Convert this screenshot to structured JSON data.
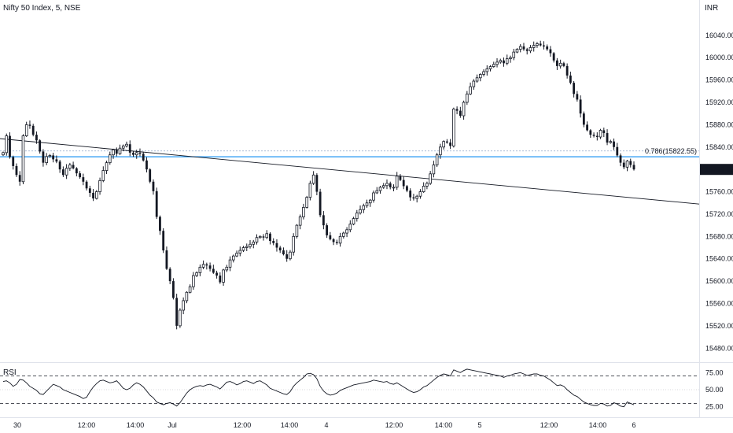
{
  "header": {
    "symbol": "Nifty 50 Index, 5, NSE"
  },
  "currency": "INR",
  "chart_data": {
    "type": "candlestick",
    "symbol": "Nifty 50 Index",
    "interval": "5",
    "exchange": "NSE",
    "currency": "INR",
    "price_axis": {
      "range": [
        15455,
        16075
      ],
      "ticks": [
        "15480.00",
        "15520.00",
        "15560.00",
        "15600.00",
        "15640.00",
        "15680.00",
        "15720.00",
        "15760.00",
        "15800.00",
        "15840.00",
        "15880.00",
        "15920.00",
        "15960.00",
        "16000.00",
        "16040.00"
      ]
    },
    "last_price": "15799.95",
    "last_price_value": 15799.95,
    "fib_level": {
      "label": "0.786(15822.55)",
      "value": 15822.55,
      "color": "#2196f3"
    },
    "dotted_level": {
      "value": 15833,
      "color": "#90a4c8"
    },
    "trendline": {
      "from": {
        "time": "30",
        "price": 15855
      },
      "to": {
        "time": "6",
        "price": 15738
      },
      "color": "#131722"
    },
    "time_axis": [
      "30",
      "12:00",
      "14:00",
      "Jul",
      "12:00",
      "14:00",
      "4",
      "12:00",
      "14:00",
      "5",
      "12:00",
      "14:00",
      "6"
    ],
    "closes": [
      15830,
      15860,
      15822,
      15806,
      15790,
      15778,
      15860,
      15880,
      15878,
      15862,
      15852,
      15832,
      15812,
      15823,
      15825,
      15818,
      15814,
      15800,
      15790,
      15802,
      15808,
      15802,
      15793,
      15786,
      15778,
      15766,
      15758,
      15748,
      15760,
      15780,
      15798,
      15812,
      15826,
      15835,
      15828,
      15838,
      15842,
      15845,
      15830,
      15826,
      15830,
      15828,
      15816,
      15800,
      15778,
      15761,
      15715,
      15690,
      15655,
      15622,
      15600,
      15570,
      15520,
      15548,
      15565,
      15580,
      15590,
      15610,
      15615,
      15625,
      15630,
      15628,
      15622,
      15615,
      15610,
      15598,
      15620,
      15625,
      15638,
      15645,
      15650,
      15655,
      15660,
      15662,
      15666,
      15670,
      15678,
      15680,
      15678,
      15685,
      15672,
      15668,
      15660,
      15655,
      15648,
      15640,
      15652,
      15680,
      15700,
      15715,
      15732,
      15750,
      15775,
      15790,
      15760,
      15718,
      15700,
      15682,
      15675,
      15670,
      15668,
      15680,
      15686,
      15692,
      15702,
      15712,
      15722,
      15728,
      15735,
      15740,
      15745,
      15758,
      15762,
      15768,
      15771,
      15775,
      15768,
      15768,
      15788,
      15781,
      15770,
      15762,
      15750,
      15748,
      15752,
      15760,
      15770,
      15775,
      15792,
      15808,
      15826,
      15840,
      15850,
      15848,
      15842,
      15908,
      15905,
      15896,
      15920,
      15935,
      15948,
      15958,
      15964,
      15970,
      15975,
      15980,
      15984,
      15988,
      15992,
      15995,
      15990,
      15998,
      16000,
      16010,
      16015,
      16020,
      16015,
      16012,
      16018,
      16022,
      16025,
      16022,
      16020,
      16015,
      16008,
      15995,
      15985,
      15990,
      15985,
      15968,
      15955,
      15935,
      15925,
      15900,
      15880,
      15870,
      15862,
      15860,
      15858,
      15870,
      15865,
      15848,
      15850,
      15840,
      15825,
      15812,
      15804,
      15815,
      15808,
      15800
    ]
  },
  "rsi": {
    "label": "RSI",
    "ticks": [
      "75.00",
      "50.00",
      "25.00"
    ],
    "bands": {
      "upper": 70,
      "middle": 50,
      "lower": 30
    },
    "values": [
      62,
      63,
      60,
      55,
      58,
      65,
      64,
      60,
      55,
      52,
      49,
      44,
      43,
      48,
      53,
      58,
      56,
      54,
      50,
      48,
      46,
      44,
      42,
      40,
      37,
      39,
      47,
      54,
      59,
      63,
      64,
      62,
      60,
      61,
      63,
      58,
      52,
      50,
      52,
      57,
      60,
      58,
      54,
      48,
      42,
      38,
      32,
      30,
      28,
      30,
      31,
      29,
      26,
      31,
      38,
      45,
      50,
      53,
      55,
      56,
      55,
      57,
      58,
      56,
      54,
      51,
      56,
      61,
      62,
      60,
      57,
      59,
      62,
      63,
      61,
      59,
      62,
      63,
      60,
      57,
      52,
      50,
      48,
      46,
      44,
      43,
      47,
      55,
      60,
      64,
      68,
      73,
      74,
      72,
      66,
      55,
      48,
      44,
      42,
      43,
      45,
      49,
      51,
      53,
      55,
      57,
      58,
      59,
      60,
      61,
      62,
      64,
      63,
      62,
      61,
      62,
      59,
      58,
      60,
      57,
      54,
      51,
      48,
      46,
      47,
      50,
      54,
      56,
      60,
      64,
      68,
      71,
      73,
      72,
      70,
      79,
      77,
      75,
      78,
      80,
      79,
      78,
      77,
      76,
      75,
      74,
      73,
      72,
      71,
      70,
      68,
      70,
      71,
      73,
      74,
      75,
      73,
      71,
      72,
      73,
      73,
      71,
      70,
      67,
      64,
      60,
      56,
      57,
      55,
      50,
      46,
      42,
      40,
      36,
      32,
      30,
      28,
      27,
      27,
      30,
      29,
      26,
      27,
      31,
      29,
      26,
      25,
      32,
      30,
      28
    ]
  },
  "colors": {
    "candle": "#131722",
    "fib": "#2196f3",
    "trendline": "#131722",
    "last_price_bg": "#131722",
    "last_price_text": "#ffffff",
    "grid_border": "#e0e3eb",
    "rsi_line": "#131722",
    "rsi_band": "#131722"
  }
}
